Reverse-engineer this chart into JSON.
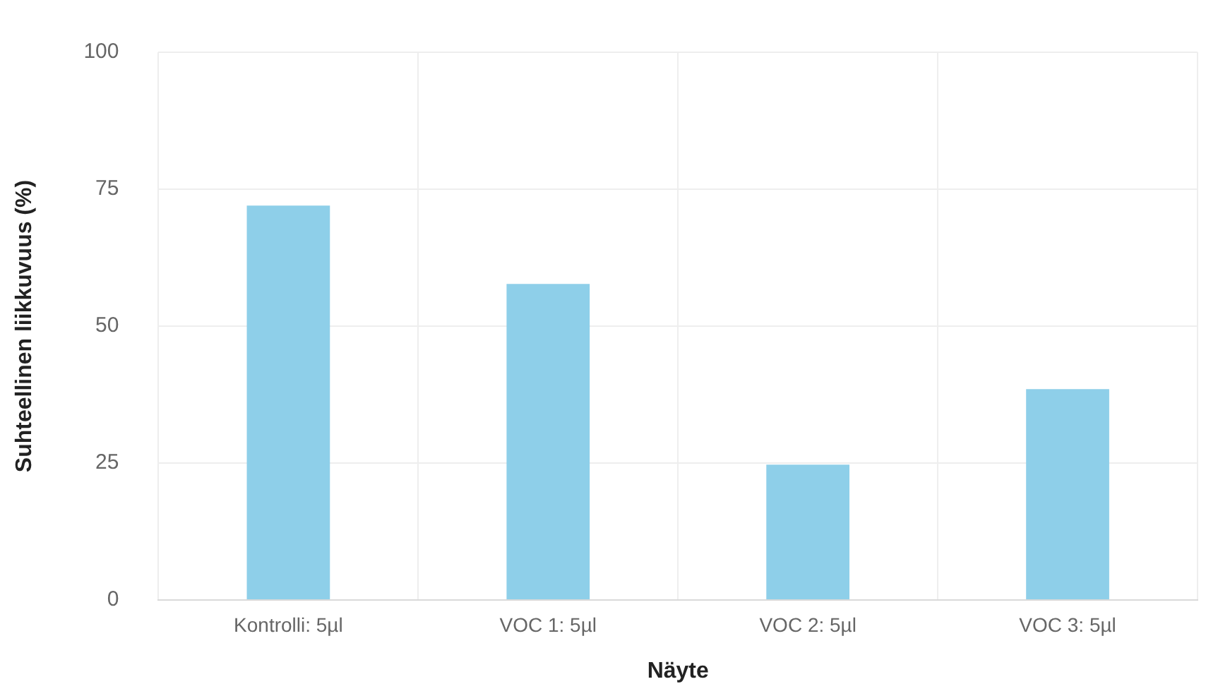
{
  "chart_data": {
    "type": "bar",
    "xlabel": "Näyte",
    "ylabel": "Suhteellinen liikkuvuus (%)",
    "categories": [
      "Kontrolli: 5µl",
      "VOC 1: 5µl",
      "VOC 2: 5µl",
      "VOC 3: 5µl"
    ],
    "values": [
      72,
      57.7,
      24.7,
      38.5
    ],
    "color": "#8ecfe9",
    "ylim": [
      0,
      100
    ],
    "yticks": [
      0,
      25,
      50,
      75,
      100
    ],
    "grid": true
  }
}
